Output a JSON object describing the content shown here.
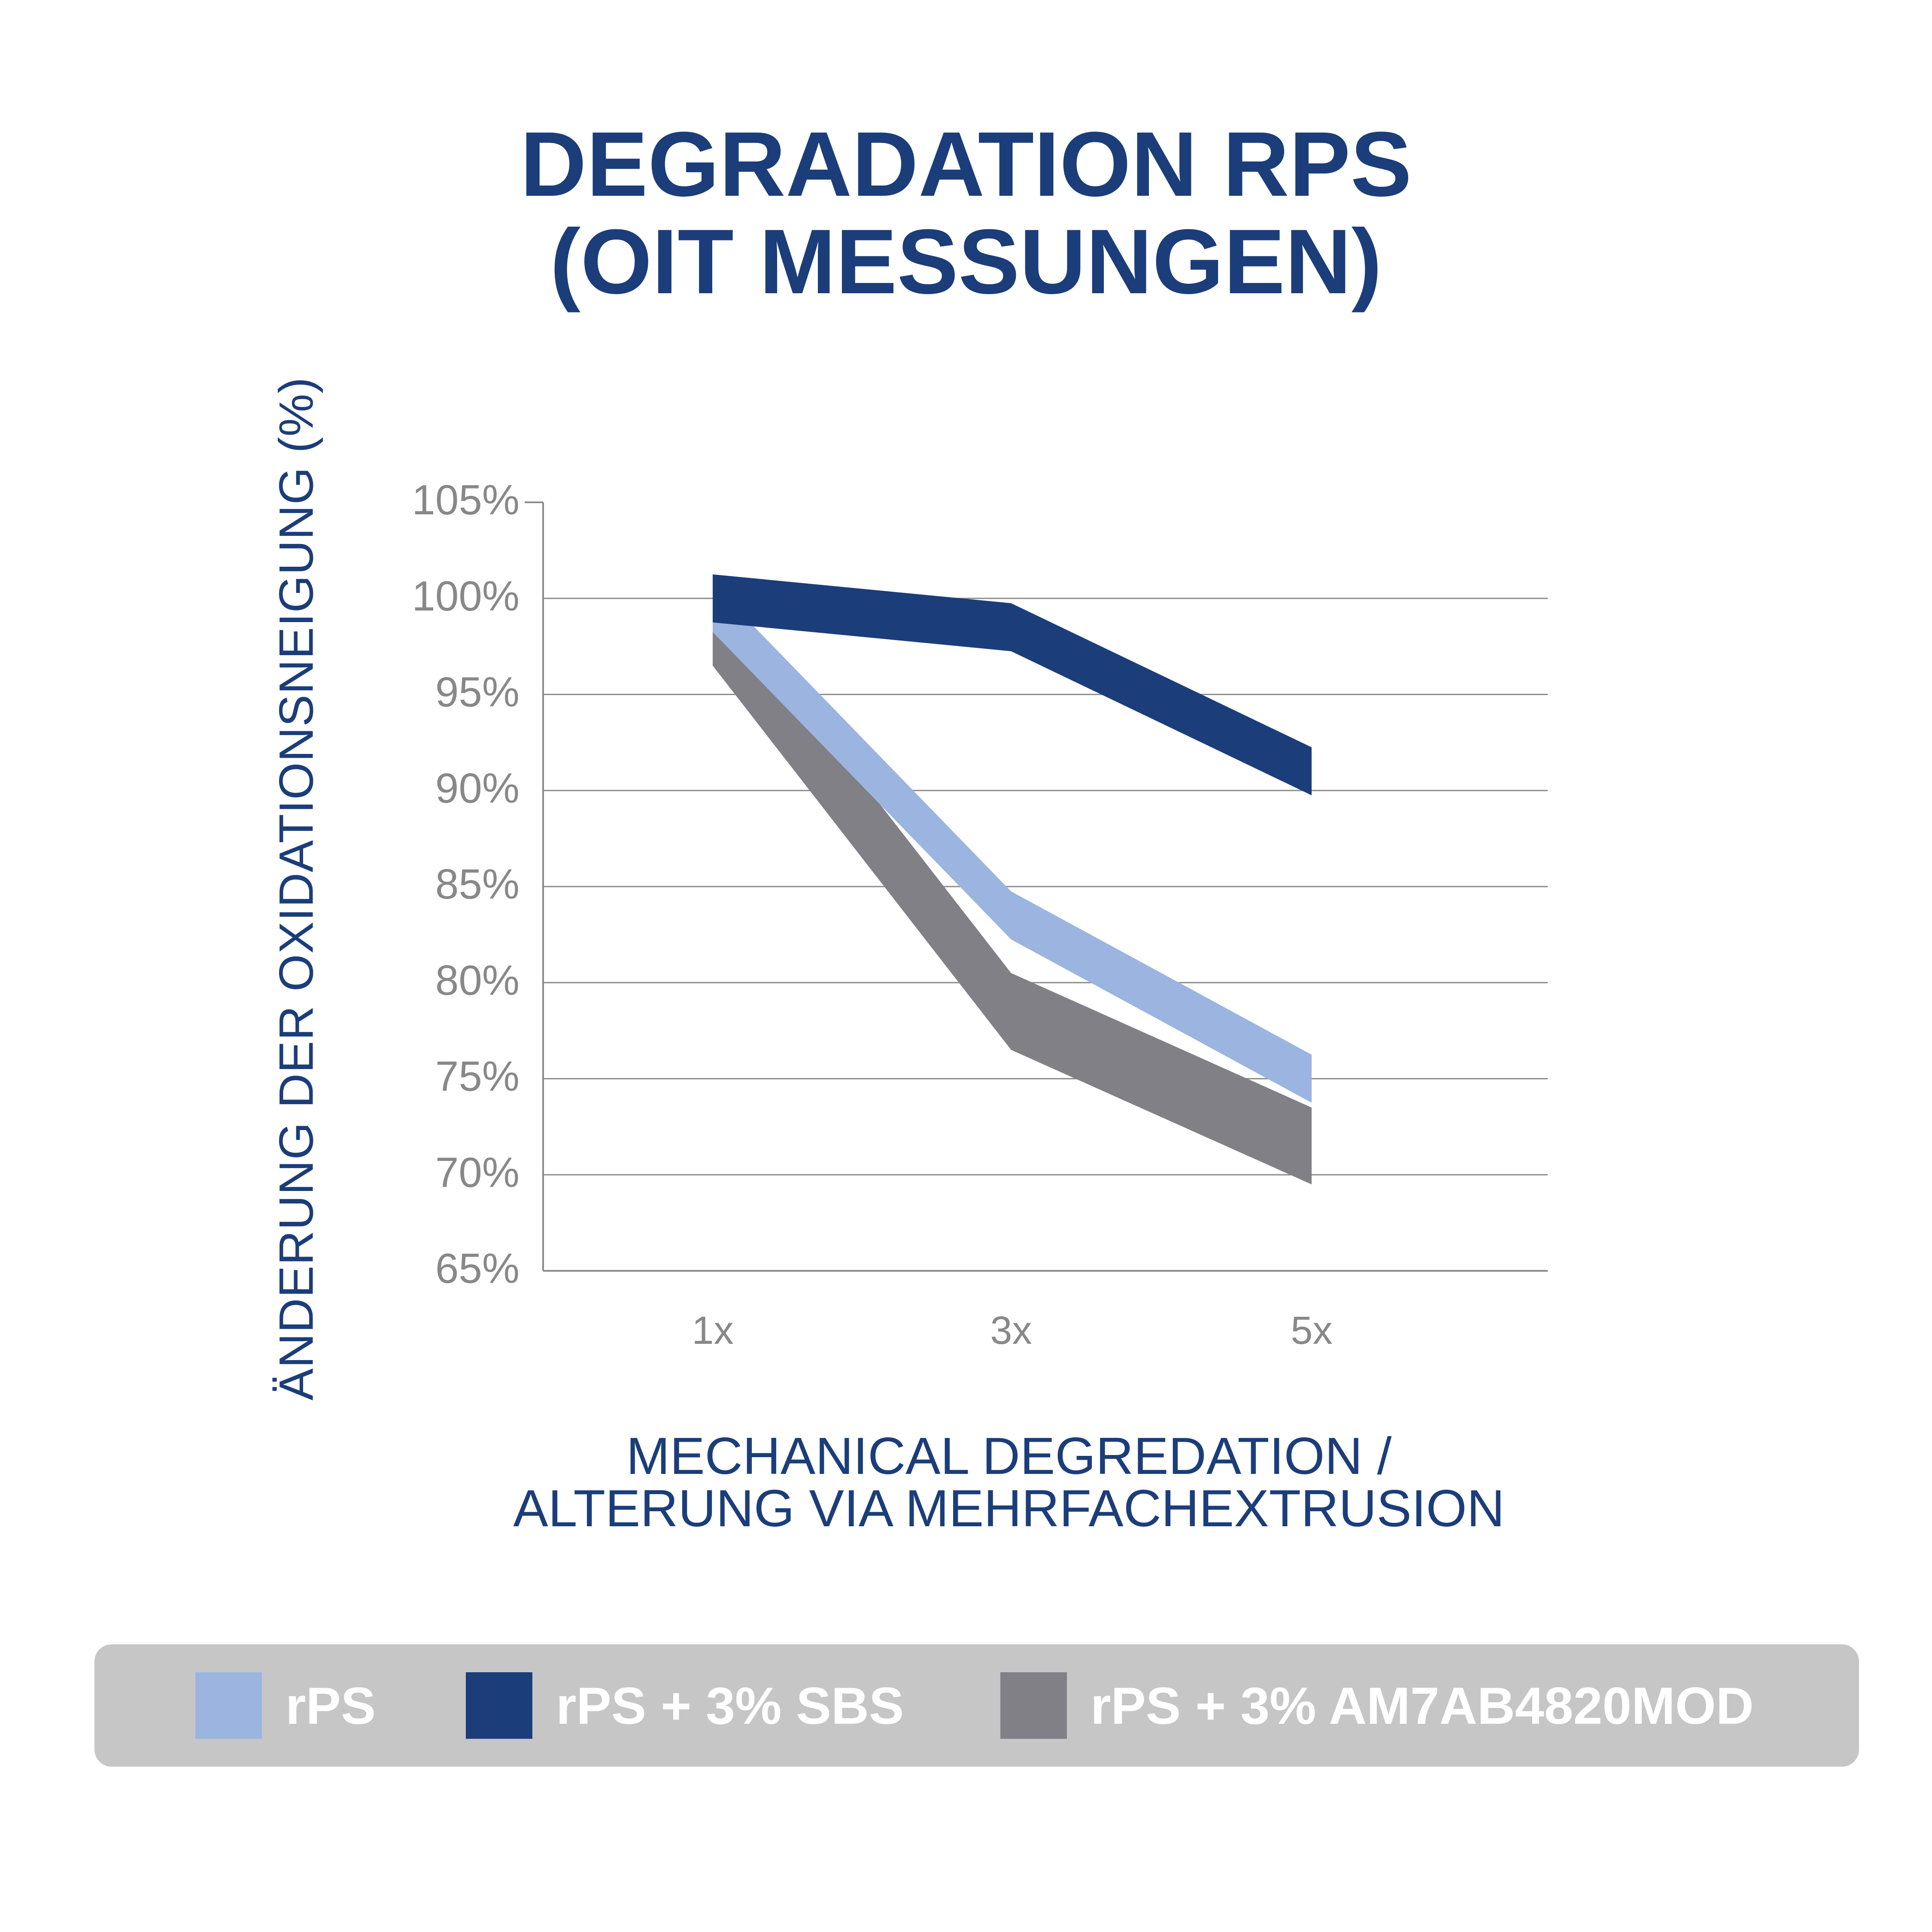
{
  "title": [
    "DEGRADATION RPS",
    "(OIT MESSUNGEN)"
  ],
  "chart_data": {
    "type": "line",
    "title": "DEGRADATION RPS (OIT MESSUNGEN)",
    "ylabel": "ÄNDERUNG DER OXIDATIONSNEIGUNG (%)",
    "xlabel": [
      "MECHANICAL DEGREDATION /",
      "ALTERUNG VIA MEHRFACHEXTRUSION"
    ],
    "categories": [
      "1x",
      "3x",
      "5x"
    ],
    "ylim": [
      65,
      105
    ],
    "yticks": [
      65,
      70,
      75,
      80,
      85,
      90,
      95,
      100,
      105
    ],
    "ytick_labels": [
      "65%",
      "70%",
      "75%",
      "80%",
      "85%",
      "90%",
      "95%",
      "100%",
      "105%"
    ],
    "grid": true,
    "legend_position": "bottom",
    "series": [
      {
        "name": "rPS",
        "values": [
          99.5,
          83.5,
          75
        ],
        "color": "#9bb4e0",
        "width": 2.5
      },
      {
        "name": "rPS + 3% SBS",
        "values": [
          100,
          98.5,
          91
        ],
        "color": "#1b3d7a",
        "width": 2.5
      },
      {
        "name": "rPS + 3% AM7AB4820MOD",
        "values": [
          98.5,
          78.5,
          71.5
        ],
        "color": "#818086",
        "width": 4
      }
    ]
  }
}
